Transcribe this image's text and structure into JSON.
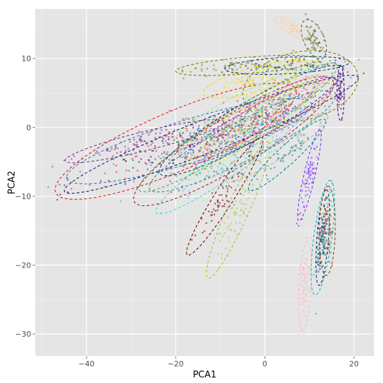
{
  "chart_data": {
    "type": "scatter",
    "title": "",
    "xlabel": "PCA1",
    "ylabel": "PCA2",
    "xlim": [
      -51.5,
      24.5
    ],
    "ylim": [
      -33.2,
      17.2
    ],
    "x_ticks": [
      -40,
      -20,
      0,
      20
    ],
    "y_ticks": [
      -30,
      -20,
      -10,
      0,
      10
    ],
    "x_tick_labels": [
      "−40",
      "−20",
      "0",
      "20"
    ],
    "y_tick_labels": [
      "−30",
      "−20",
      "−10",
      "0",
      "10"
    ],
    "grid": true,
    "legend": "none",
    "panel_background": "#e5e5e5",
    "grid_color": "#ffffff",
    "ellipse_style": "dashed",
    "series": [
      {
        "color": "#e31a1c",
        "center": [
          -20,
          -2
        ],
        "a": 28,
        "b": 4.5,
        "angle_deg": 15,
        "n": 90
      },
      {
        "color": "#2c7bb6",
        "center": [
          -17,
          -2
        ],
        "a": 28,
        "b": 3.2,
        "angle_deg": 11,
        "n": 80
      },
      {
        "color": "#7b3294",
        "center": [
          -27,
          -2
        ],
        "a": 18,
        "b": 1.4,
        "angle_deg": 9,
        "n": 70
      },
      {
        "color": "#1a1a6e",
        "center": [
          -12,
          -1
        ],
        "a": 34,
        "b": 2.5,
        "angle_deg": 14,
        "n": 90
      },
      {
        "color": "#b2182b",
        "center": [
          -7,
          -2
        ],
        "a": 24,
        "b": 4,
        "angle_deg": 21,
        "n": 80
      },
      {
        "color": "#253494",
        "center": [
          -3,
          1
        ],
        "a": 22,
        "b": 3,
        "angle_deg": 20,
        "n": 80
      },
      {
        "color": "#3cb44b",
        "center": [
          -6,
          0
        ],
        "a": 24,
        "b": 2.8,
        "angle_deg": 22,
        "n": 80
      },
      {
        "color": "#2f8f8f",
        "center": [
          -5,
          -2
        ],
        "a": 22,
        "b": 3,
        "angle_deg": 18,
        "n": 80
      },
      {
        "color": "#f58231",
        "center": [
          -2,
          1
        ],
        "a": 18,
        "b": 2.4,
        "angle_deg": 16,
        "n": 60
      },
      {
        "color": "#911eb4",
        "center": [
          -1,
          1
        ],
        "a": 18,
        "b": 2.4,
        "angle_deg": 19,
        "n": 60
      },
      {
        "color": "#42d4f4",
        "center": [
          -8,
          -5
        ],
        "a": 18,
        "b": 2.2,
        "angle_deg": 24,
        "n": 60
      },
      {
        "color": "#bfef45",
        "center": [
          -3,
          0
        ],
        "a": 16,
        "b": 2.2,
        "angle_deg": 23,
        "n": 60
      },
      {
        "color": "#ff69b4",
        "center": [
          0,
          2
        ],
        "a": 14,
        "b": 2,
        "angle_deg": 22,
        "n": 60
      },
      {
        "color": "#ffd700",
        "center": [
          -2,
          7
        ],
        "a": 12,
        "b": 1.8,
        "angle_deg": 10,
        "n": 60
      },
      {
        "color": "#a9a9a9",
        "center": [
          2,
          -3
        ],
        "a": 13,
        "b": 2,
        "angle_deg": 21,
        "n": 50
      },
      {
        "color": "#808000",
        "center": [
          -4,
          9
        ],
        "a": 16,
        "b": 1.2,
        "angle_deg": 3,
        "n": 70
      },
      {
        "color": "#003f8a",
        "center": [
          5,
          9
        ],
        "a": 14,
        "b": 1.2,
        "angle_deg": 2,
        "n": 70
      },
      {
        "color": "#7f7f00",
        "center": [
          8,
          6
        ],
        "a": 13,
        "b": 5,
        "angle_deg": 6,
        "n": 40
      },
      {
        "color": "#e8e85a",
        "center": [
          2,
          7
        ],
        "a": 12,
        "b": 1.8,
        "angle_deg": 10,
        "n": 40
      },
      {
        "color": "#90ee90",
        "center": [
          -5,
          3
        ],
        "a": 16,
        "b": 2,
        "angle_deg": 18,
        "n": 50
      },
      {
        "color": "#800000",
        "center": [
          -9,
          -10
        ],
        "a": 12,
        "b": 1.8,
        "angle_deg": 45,
        "n": 60
      },
      {
        "color": "#9acd32",
        "center": [
          -6,
          -12
        ],
        "a": 12,
        "b": 2.2,
        "angle_deg": 55,
        "n": 70
      },
      {
        "color": "#aaffc3",
        "center": [
          -10,
          -6
        ],
        "a": 12,
        "b": 2.2,
        "angle_deg": 33,
        "n": 50
      },
      {
        "color": "#4b0082",
        "center": [
          17,
          5
        ],
        "a": 4,
        "b": 0.8,
        "angle_deg": 90,
        "n": 40
      },
      {
        "color": "#7b2dff",
        "center": [
          10,
          -7
        ],
        "a": 7,
        "b": 1.2,
        "angle_deg": 70,
        "n": 60
      },
      {
        "color": "#ffcc99",
        "center": [
          6,
          14.5
        ],
        "a": 4,
        "b": 1,
        "angle_deg": -18,
        "n": 50
      },
      {
        "color": "#556b2f",
        "center": [
          11,
          12.8
        ],
        "a": 3.5,
        "b": 2,
        "angle_deg": -45,
        "n": 60
      },
      {
        "color": "#008b8b",
        "center": [
          5,
          -4
        ],
        "a": 10,
        "b": 1.6,
        "angle_deg": 30,
        "n": 40
      },
      {
        "color": "#00bfbf",
        "center": [
          13,
          -16
        ],
        "a": 8.5,
        "b": 2,
        "angle_deg": 78,
        "n": 50
      },
      {
        "color": "#002f6c",
        "center": [
          13,
          -16
        ],
        "a": 7,
        "b": 1.3,
        "angle_deg": 83,
        "n": 70
      },
      {
        "color": "#8b4513",
        "center": [
          14,
          -15
        ],
        "a": 6.5,
        "b": 1.8,
        "angle_deg": 88,
        "n": 60
      },
      {
        "color": "#ffb6c1",
        "center": [
          9,
          -23
        ],
        "a": 6.5,
        "b": 1.4,
        "angle_deg": 85,
        "n": 70
      }
    ]
  }
}
